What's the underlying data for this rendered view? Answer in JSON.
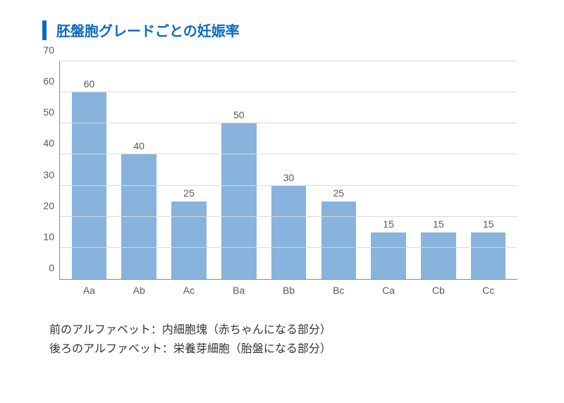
{
  "title": {
    "text": "胚盤胞グレードごとの妊娠率",
    "color": "#0a6bc6",
    "accent_bar_color": "#0a6bc6",
    "fontsize": 20
  },
  "chart": {
    "type": "bar",
    "categories": [
      "Aa",
      "Ab",
      "Ac",
      "Ba",
      "Bb",
      "Bc",
      "Ca",
      "Cb",
      "Cc"
    ],
    "values": [
      60,
      40,
      25,
      50,
      30,
      25,
      15,
      15,
      15
    ],
    "bar_color": "#87b3dc",
    "value_label_color": "#595959",
    "axis_label_color": "#595959",
    "grid_color": "#d9d9d9",
    "axis_line_color": "#888888",
    "background_color": "#ffffff",
    "ylim": [
      0,
      70
    ],
    "ytick_step": 10,
    "bar_width": 0.7,
    "label_fontsize": 14
  },
  "footnotes": [
    "前のアルファベット：内細胞塊（赤ちゃんになる部分）",
    "後ろのアルファベット：栄養芽細胞（胎盤になる部分）"
  ]
}
